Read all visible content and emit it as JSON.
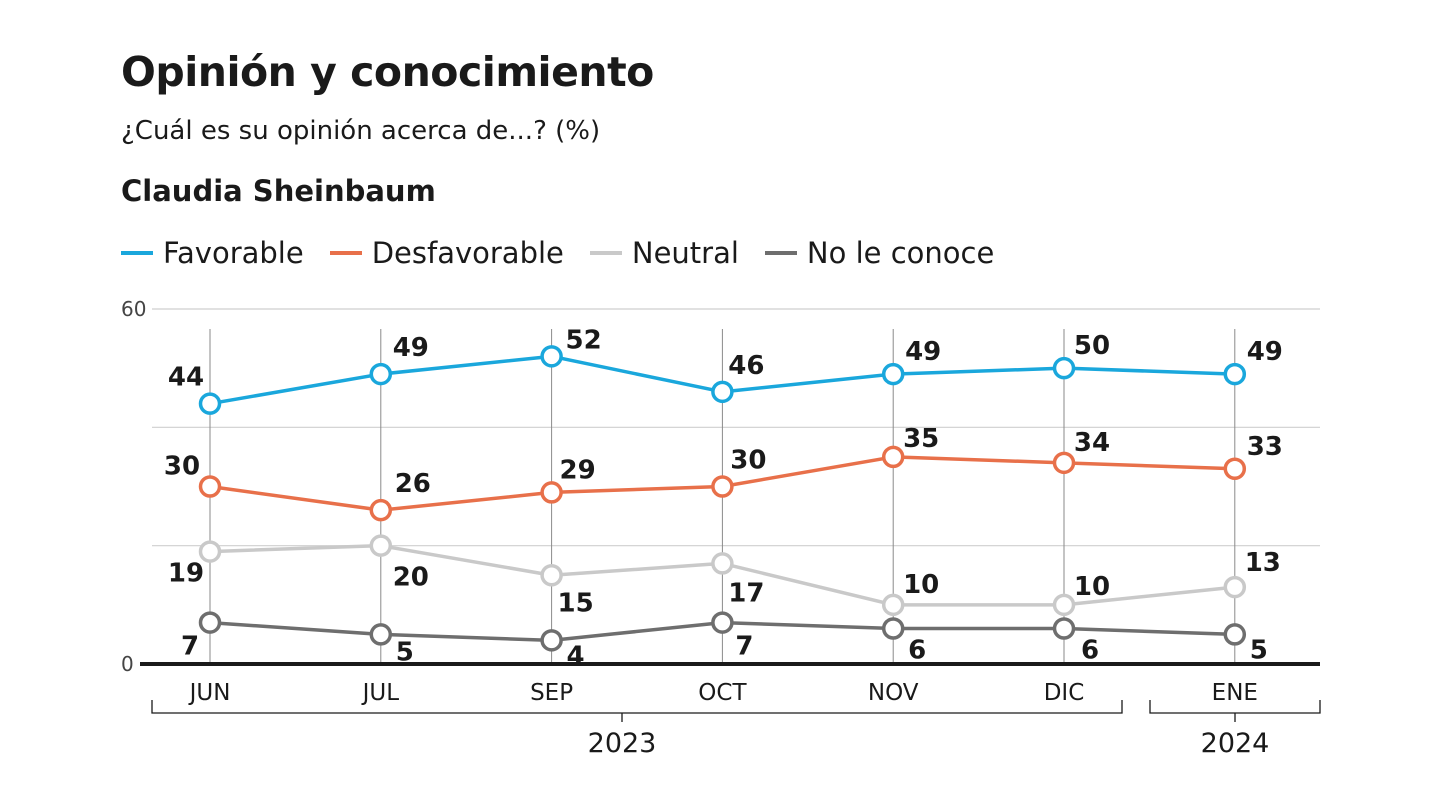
{
  "title": "Opinión y conocimiento",
  "subtitle": "¿Cuál es su opinión acerca de...? (%)",
  "person": "Claudia Sheinbaum",
  "legend": [
    {
      "label": "Favorable",
      "color": "#1aa7dc"
    },
    {
      "label": "Desfavorable",
      "color": "#e8704a"
    },
    {
      "label": "Neutral",
      "color": "#c9c9c9"
    },
    {
      "label": "No le conoce",
      "color": "#6e6e6e"
    }
  ],
  "chart_data": {
    "type": "line",
    "title": "Opinión y conocimiento",
    "subtitle": "¿Cuál es su opinión acerca de...? (%)",
    "categories": [
      "JUN",
      "JUL",
      "SEP",
      "OCT",
      "NOV",
      "DIC",
      "ENE"
    ],
    "year_groups": [
      {
        "label": "2023",
        "from": "JUN",
        "to": "DIC"
      },
      {
        "label": "2024",
        "from": "ENE",
        "to": "ENE"
      }
    ],
    "ylim": [
      0,
      60
    ],
    "yticks": [
      0,
      20,
      40,
      60
    ],
    "ytick_labels": [
      "0",
      "",
      "",
      "60"
    ],
    "grid": true,
    "legend_position": "top-left",
    "series": [
      {
        "name": "Favorable",
        "color": "#1aa7dc",
        "values": [
          44,
          49,
          52,
          46,
          49,
          50,
          49
        ]
      },
      {
        "name": "Desfavorable",
        "color": "#e8704a",
        "values": [
          30,
          26,
          29,
          30,
          35,
          34,
          33
        ]
      },
      {
        "name": "Neutral",
        "color": "#c9c9c9",
        "values": [
          19,
          20,
          15,
          17,
          10,
          10,
          13
        ]
      },
      {
        "name": "No le conoce",
        "color": "#6e6e6e",
        "values": [
          7,
          5,
          4,
          7,
          6,
          6,
          5
        ]
      }
    ]
  }
}
